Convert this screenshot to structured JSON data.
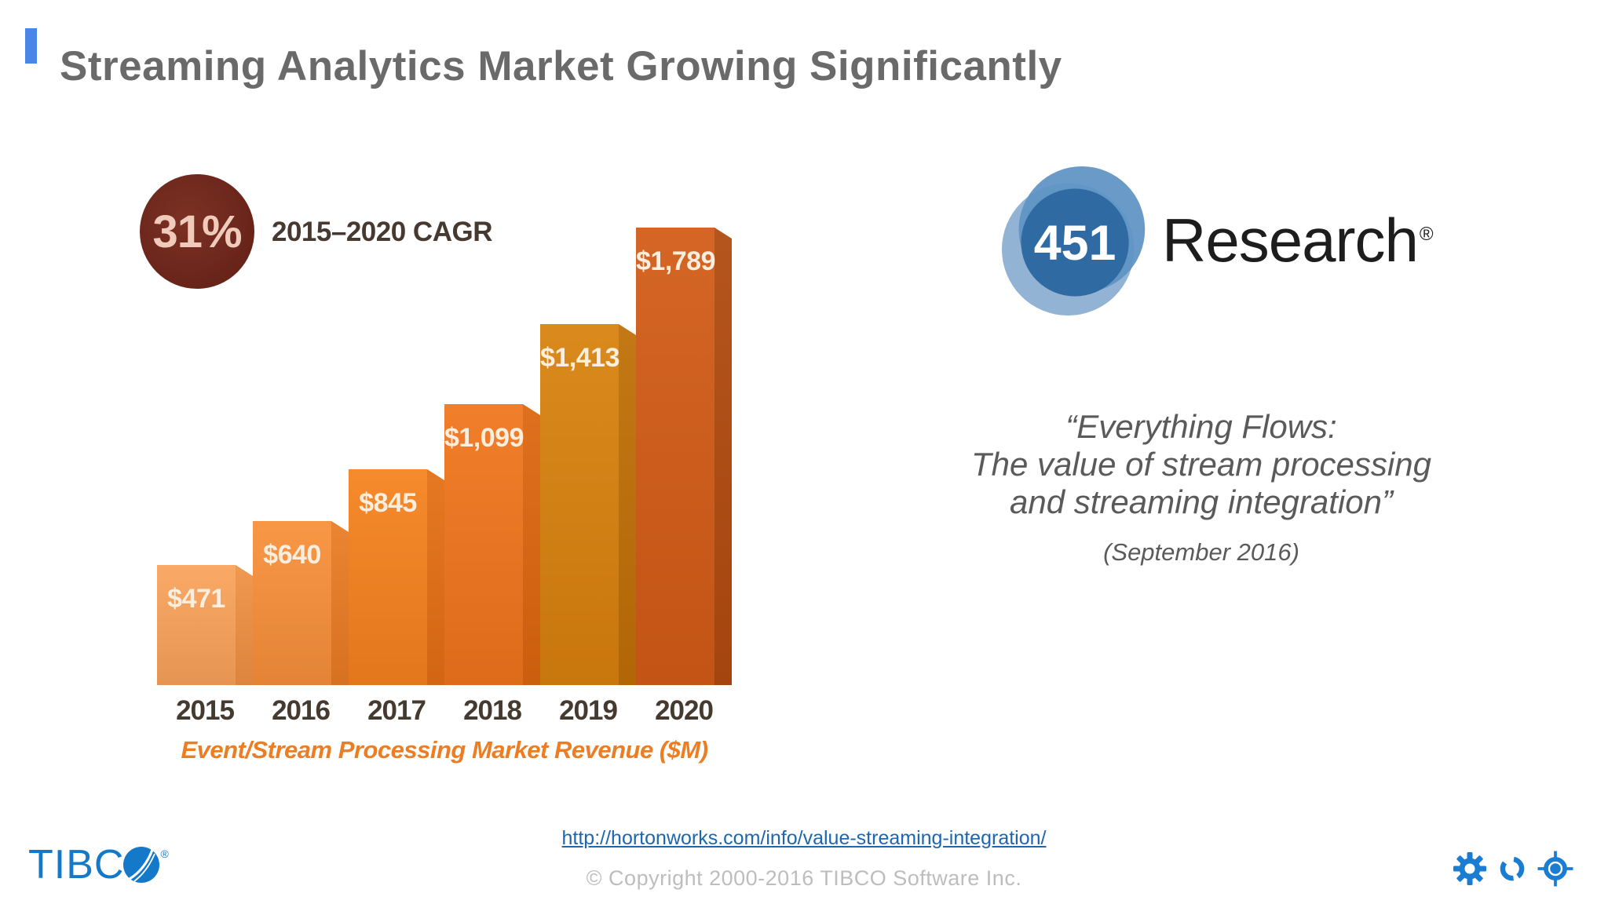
{
  "theme": {
    "accent": "#4a86e8",
    "title-color": "#6a6a6a",
    "brand-blue": "#1479c8",
    "icon-blue": "#1b7dd1",
    "link-color": "#1d66b0",
    "caption-color": "#ed7d23",
    "year-color": "#453a30",
    "bar-label-color": "#faeedf",
    "quote-color": "#5a5a5a",
    "copyright-color": "#bdbdbd",
    "cagr-circle": "#69241a",
    "cagr-text": "#f0cbbb",
    "cagr-label-color": "#463931",
    "research-color": "#1d1d1d",
    "logo-light": "#93b3d4",
    "logo-mid": "#5f93c4",
    "logo-dark": "#2f6aa3"
  },
  "header": {
    "title": "Streaming Analytics Market Growing Significantly"
  },
  "chart_data": {
    "type": "bar",
    "title": "Event/Stream Processing Market Revenue ($M)",
    "categories": [
      "2015",
      "2016",
      "2017",
      "2018",
      "2019",
      "2020"
    ],
    "values": [
      471,
      640,
      845,
      1099,
      1413,
      1789
    ],
    "value_labels": [
      "$471",
      "$640",
      "$845",
      "$1,099",
      "$1,413",
      "$1,789"
    ],
    "ylim": [
      0,
      1789
    ],
    "unit": "$M",
    "grid": false,
    "legend": "none",
    "bar_colors": [
      {
        "face": "#f9a45c",
        "fold": "#ef9245"
      },
      {
        "face": "#f7913b",
        "fold": "#e97d26"
      },
      {
        "face": "#f5831f",
        "fold": "#e47014"
      },
      {
        "face": "#f0761d",
        "fold": "#dc6710"
      },
      {
        "face": "#d8830e",
        "fold": "#bf7007"
      },
      {
        "face": "#d25c17",
        "fold": "#b04b10"
      }
    ],
    "cagr": {
      "value": "31%",
      "label": "2015–2020 CAGR"
    }
  },
  "source": {
    "logo_number": "451",
    "logo_name": "Research",
    "logo_reg": "®",
    "quote_lines": [
      "“Everything Flows:",
      "The value of stream processing",
      "and streaming integration”"
    ],
    "date": "(September 2016)"
  },
  "footer": {
    "brand_text": "TIBC",
    "brand_reg": "®",
    "link": "http://hortonworks.com/info/value-streaming-integration/",
    "copyright": "© Copyright 2000-2016 TIBCO Software Inc.",
    "icons": [
      "gear-icon",
      "ring-icon",
      "target-icon"
    ]
  }
}
